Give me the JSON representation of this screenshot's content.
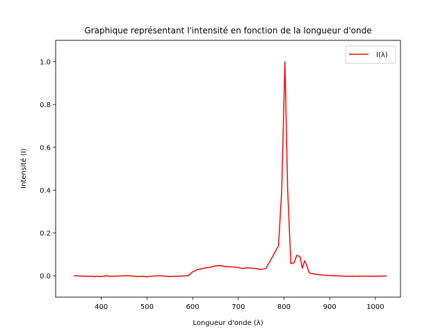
{
  "chart_data": {
    "type": "line",
    "title": "Graphique représentant l'intensité en fonction de la longueur d'onde",
    "xlabel": "Longueur d'onde (λ)",
    "ylabel": "Intensité (I)",
    "xlim": [
      300,
      1055
    ],
    "ylim": [
      -0.1,
      1.1
    ],
    "xticks": [
      "400",
      "500",
      "600",
      "700",
      "800",
      "900",
      "1000"
    ],
    "yticks": [
      "0.0",
      "0.2",
      "0.4",
      "0.6",
      "0.8",
      "1.0"
    ],
    "grid": false,
    "legend_position": "top-right",
    "series": [
      {
        "name": "I(λ)",
        "color": "#ff0000",
        "x": [
          340,
          350,
          360,
          370,
          380,
          385,
          390,
          400,
          410,
          420,
          430,
          440,
          450,
          460,
          470,
          480,
          490,
          500,
          510,
          520,
          530,
          540,
          550,
          560,
          570,
          580,
          590,
          600,
          610,
          620,
          630,
          640,
          650,
          660,
          670,
          680,
          690,
          700,
          710,
          720,
          730,
          740,
          750,
          760,
          770,
          780,
          788,
          795,
          802,
          808,
          815,
          822,
          828,
          835,
          840,
          845,
          850,
          855,
          860,
          870,
          880,
          890,
          900,
          910,
          920,
          930,
          940,
          950,
          960,
          970,
          980,
          990,
          1000,
          1010,
          1025
        ],
        "y": [
          0.0,
          -0.001,
          -0.002,
          -0.003,
          -0.002,
          -0.005,
          -0.003,
          -0.004,
          0.0,
          -0.003,
          -0.002,
          -0.001,
          -0.001,
          0.0,
          -0.002,
          -0.004,
          -0.003,
          -0.005,
          -0.002,
          -0.001,
          0.0,
          -0.002,
          -0.004,
          -0.003,
          -0.002,
          -0.001,
          0.0,
          0.018,
          0.028,
          0.033,
          0.037,
          0.04,
          0.046,
          0.048,
          0.043,
          0.042,
          0.041,
          0.038,
          0.034,
          0.037,
          0.035,
          0.033,
          0.029,
          0.034,
          0.07,
          0.11,
          0.14,
          0.4,
          1.0,
          0.4,
          0.057,
          0.06,
          0.095,
          0.09,
          0.035,
          0.07,
          0.047,
          0.015,
          0.01,
          0.007,
          0.004,
          0.002,
          0.001,
          0.0,
          -0.001,
          -0.002,
          -0.003,
          -0.002,
          -0.003,
          -0.002,
          -0.002,
          -0.003,
          -0.002,
          -0.002,
          -0.001
        ]
      }
    ]
  }
}
